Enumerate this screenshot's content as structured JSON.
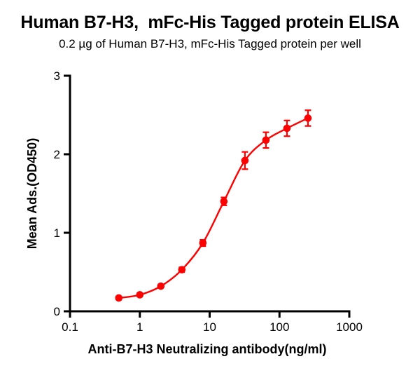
{
  "page": {
    "background": "#ffffff"
  },
  "header": {
    "title": "Human B7-H3,  mFc-His Tagged protein ELISA",
    "subtitle": "0.2 µg of Human B7-H3, mFc-His Tagged protein per well"
  },
  "chart_data": {
    "type": "line",
    "title": "Human B7-H3,  mFc-His Tagged protein ELISA",
    "subtitle": "0.2 µg of Human B7-H3, mFc-His Tagged protein per well",
    "xlabel": "Anti-B7-H3 Neutralizing antibody(ng/ml)",
    "ylabel": "Mean Ads.(OD450)",
    "x_scale": "log10",
    "xlim": [
      0.1,
      1000
    ],
    "ylim": [
      0,
      3
    ],
    "grid": false,
    "legend": false,
    "axis_color": "#000000",
    "x_ticks": {
      "values": [
        0.1,
        1,
        10,
        100,
        1000
      ],
      "labels": [
        "0.1",
        "1",
        "10",
        "100",
        "1000"
      ]
    },
    "y_ticks": {
      "values": [
        0,
        1,
        2,
        3
      ],
      "labels": [
        "0",
        "1",
        "2",
        "3"
      ]
    },
    "series": [
      {
        "name": "Anti-B7-H3 Neutralizing antibody",
        "color": "#fe0000",
        "marker": "circle",
        "curve": "sigmoid-fit",
        "x": [
          0.5,
          1,
          2,
          4,
          8,
          16,
          32,
          64,
          128,
          256
        ],
        "y": [
          0.17,
          0.21,
          0.32,
          0.53,
          0.87,
          1.4,
          1.92,
          2.18,
          2.33,
          2.46
        ],
        "y_err": [
          0.02,
          0.02,
          0.02,
          0.03,
          0.04,
          0.05,
          0.11,
          0.1,
          0.1,
          0.1
        ]
      }
    ]
  }
}
